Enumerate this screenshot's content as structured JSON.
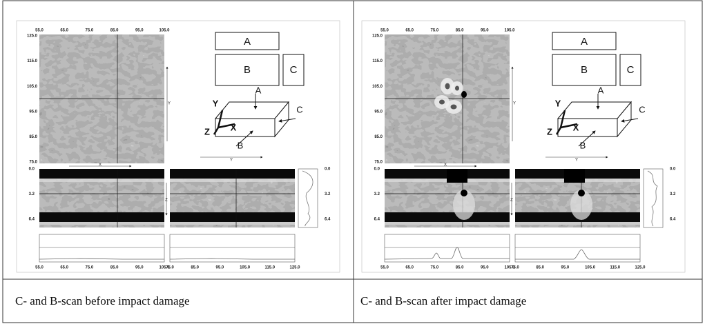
{
  "panels": [
    {
      "cscan_x_ticks": [
        "55.0",
        "65.0",
        "75.0",
        "85.0",
        "95.0",
        "105.0"
      ],
      "cscan_y_ticks": [
        "125.0",
        "115.0",
        "105.0",
        "95.0",
        "85.0",
        "75.0"
      ],
      "boxes": [
        "A",
        "B",
        "C"
      ],
      "diagram_labels": {
        "a": "A",
        "b": "B",
        "c": "C",
        "x": "X",
        "y": "Y",
        "z": "Z"
      },
      "axis_labels": {
        "below_diagram": "Y",
        "below_cscan": "X",
        "right_cscan": "Y",
        "between_bscans": "Z"
      },
      "bscan_ticks": [
        "0.0",
        "3.2",
        "6.4"
      ],
      "profile_ticks": [
        "0.0",
        "3.2",
        "6.4"
      ],
      "bottom_ticks_left": [
        "55.0",
        "65.0",
        "75.0",
        "85.0",
        "95.0",
        "105.0"
      ],
      "bottom_ticks_right": [
        "75.0",
        "85.0",
        "95.0",
        "105.0",
        "115.0",
        "125.0"
      ],
      "caption": "C- and B-scan before impact damage"
    },
    {
      "cscan_x_ticks": [
        "55.0",
        "65.0",
        "75.0",
        "85.0",
        "95.0",
        "105.0"
      ],
      "cscan_y_ticks": [
        "125.0",
        "115.0",
        "105.0",
        "95.0",
        "85.0",
        "75.0"
      ],
      "boxes": [
        "A",
        "B",
        "C"
      ],
      "diagram_labels": {
        "a": "A",
        "b": "B",
        "c": "C",
        "x": "X",
        "y": "Y",
        "z": "Z"
      },
      "axis_labels": {
        "below_diagram": "Y",
        "below_cscan": "X",
        "right_cscan": "Y",
        "between_bscans": "Z"
      },
      "bscan_ticks": [
        "0.0",
        "3.2",
        "6.4"
      ],
      "profile_ticks": [
        "0.0",
        "3.2",
        "6.4"
      ],
      "bottom_ticks_left": [
        "55.0",
        "65.0",
        "75.0",
        "85.0",
        "95.0",
        "105.0"
      ],
      "bottom_ticks_right": [
        "75.0",
        "85.0",
        "95.0",
        "105.0",
        "115.0",
        "125.0"
      ],
      "caption": "C- and B-scan after impact damage"
    }
  ]
}
